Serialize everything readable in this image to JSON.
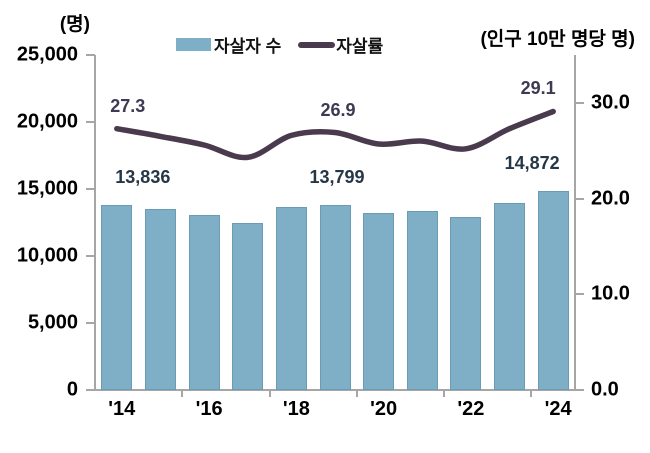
{
  "figure": {
    "left_unit_label": "(명)",
    "right_unit_label": "(인구 10만 명당 명)"
  },
  "legend": [
    {
      "label": "자살자 수",
      "marker": "bar"
    },
    {
      "label": "자살률",
      "marker": "line"
    }
  ],
  "colors": {
    "bar_fill": "#7FAFC7",
    "line": "#4A3A4D",
    "count_label": "#253746",
    "rate_label": "#3D3A52",
    "axis_text": "#000000",
    "axis_line": "#a6a6a6"
  },
  "chart_data": {
    "type": "bar+line",
    "title": "",
    "categories": [
      2014,
      2015,
      2016,
      2017,
      2018,
      2019,
      2020,
      2021,
      2022,
      2023,
      2024
    ],
    "x_tick_labels": [
      "'14",
      "'16",
      "'18",
      "'20",
      "'22",
      "'24"
    ],
    "series": [
      {
        "name": "자살자 수",
        "type": "bar",
        "axis": "left",
        "values": [
          13836,
          13513,
          13092,
          12463,
          13670,
          13799,
          13195,
          13352,
          12906,
          13978,
          14872
        ]
      },
      {
        "name": "자살률",
        "type": "line",
        "axis": "right",
        "values": [
          27.3,
          26.5,
          25.6,
          24.3,
          26.6,
          26.9,
          25.7,
          26.0,
          25.2,
          27.3,
          29.1
        ]
      }
    ],
    "left_axis": {
      "title": "(명)",
      "min": 0,
      "max": 25000,
      "tick_values": [
        25000,
        20000,
        15000,
        10000,
        5000,
        0
      ],
      "tick_labels": [
        "25,000",
        "20,000",
        "15,000",
        "10,000",
        "5,000",
        "0"
      ]
    },
    "right_axis": {
      "title": "(인구 10만 명당 명)",
      "min": 0,
      "max": 35,
      "tick_values": [
        30,
        20,
        10,
        0
      ],
      "tick_labels": [
        "30.0",
        "20.0",
        "10.0",
        "0.0"
      ]
    },
    "data_labels": {
      "bar": [
        {
          "index": 0,
          "text": "13,836",
          "dx": 26
        },
        {
          "index": 5,
          "text": "13,799",
          "dx": 2
        },
        {
          "index": 10,
          "text": "14,872",
          "dx": -21
        }
      ],
      "line": [
        {
          "index": 0,
          "text": "27.3",
          "dx": 11
        },
        {
          "index": 5,
          "text": "26.9",
          "dx": 3
        },
        {
          "index": 10,
          "text": "29.1",
          "dx": -15
        }
      ]
    },
    "grid": false,
    "legend_position": "top-center"
  }
}
